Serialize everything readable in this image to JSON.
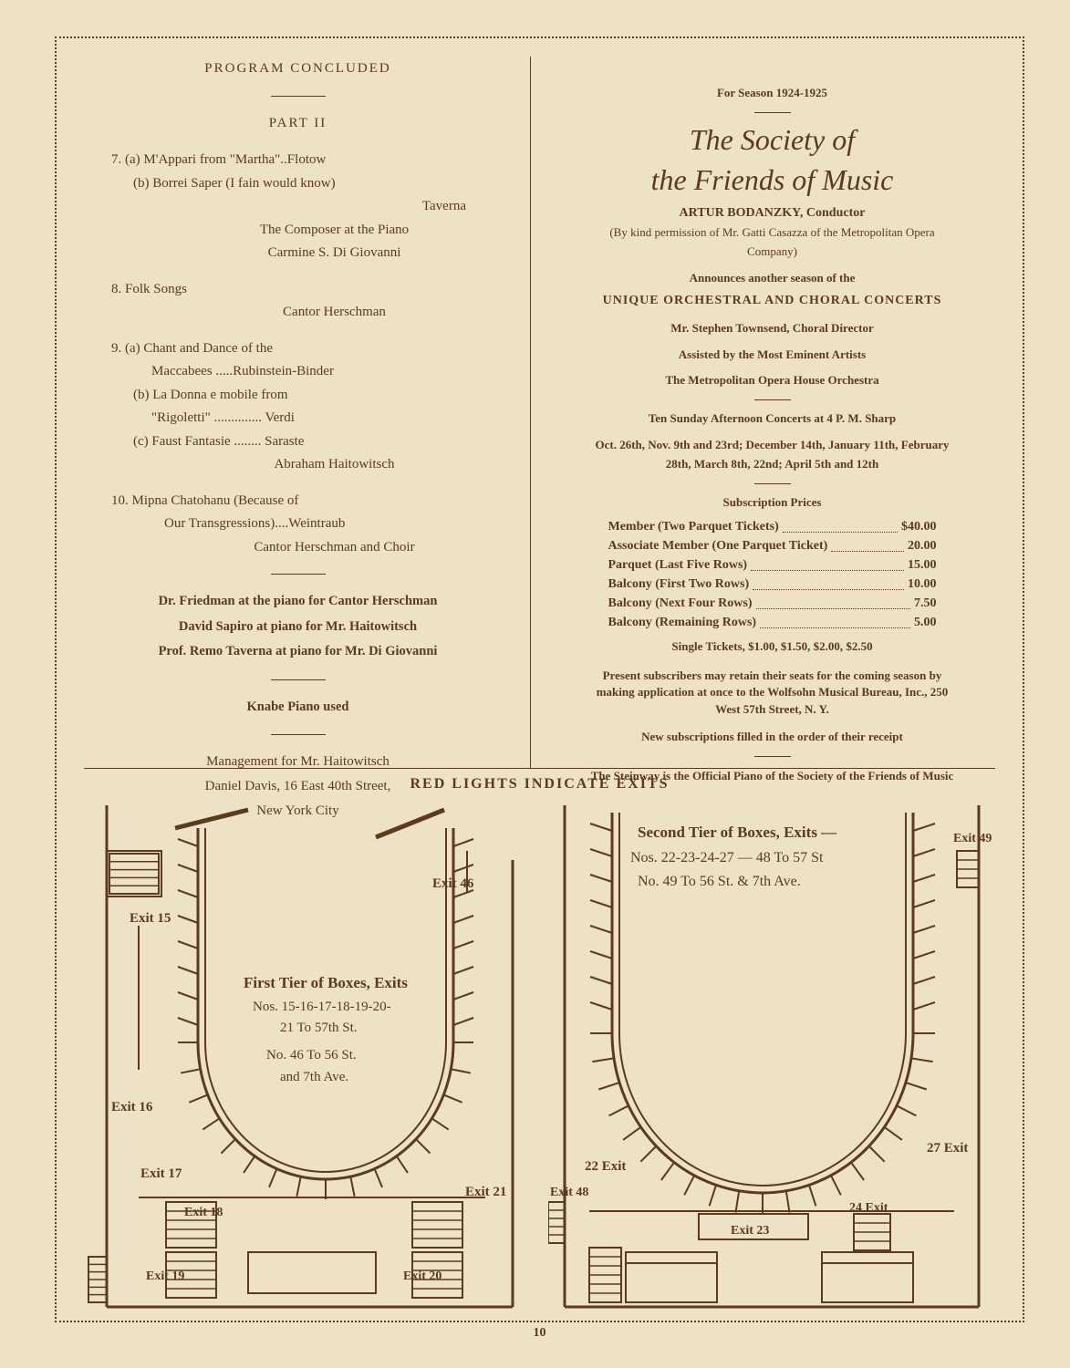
{
  "pageNumber": "10",
  "diagramHeader": "RED LIGHTS INDICATE EXITS",
  "program": {
    "concluded": "PROGRAM CONCLUDED",
    "part": "PART II",
    "item7a": "7. (a) M'Appari from \"Martha\"..Flotow",
    "item7b": "(b) Borrei Saper (I fain would know)",
    "item7b_right": "Taverna",
    "item7_note1": "The Composer at the Piano",
    "item7_note2": "Carmine S. Di Giovanni",
    "item8": "8. Folk Songs",
    "item8_perf": "Cantor Herschman",
    "item9a": "9. (a) Chant and Dance of the",
    "item9a2": "Maccabees .....Rubinstein-Binder",
    "item9b": "(b) La Donna e mobile from",
    "item9b2": "\"Rigoletti\" .............. Verdi",
    "item9c": "(c) Faust Fantasie ........ Saraste",
    "item9_perf": "Abraham Haitowitsch",
    "item10": "10. Mipna Chatohanu (Because of",
    "item10b": "Our Transgressions)....Weintraub",
    "item10_perf": "Cantor Herschman and Choir",
    "credit1": "Dr. Friedman at the piano for Cantor Herschman",
    "credit2": "David Sapiro at piano for Mr. Haitowitsch",
    "credit3": "Prof. Remo Taverna at piano for Mr. Di Giovanni",
    "piano": "Knabe Piano used",
    "mgmt1": "Management for Mr. Haitowitsch",
    "mgmt2": "Daniel Davis, 16 East 40th Street,",
    "mgmt3": "New York City"
  },
  "society": {
    "season": "For Season 1924-1925",
    "title1": "The Society of",
    "title2": "the Friends of Music",
    "conductor": "ARTUR BODANZKY, Conductor",
    "permission": "(By kind permission of Mr. Gatti Casazza of the Metropolitan Opera Company)",
    "announce": "Announces another season of the",
    "unique": "UNIQUE ORCHESTRAL AND CHORAL CONCERTS",
    "choral": "Mr. Stephen Townsend, Choral Director",
    "assisted": "Assisted by the Most Eminent Artists",
    "orchestra": "The Metropolitan Opera House Orchestra",
    "concerts": "Ten Sunday Afternoon Concerts at 4 P. M. Sharp",
    "dates": "Oct. 26th, Nov. 9th and 23rd; December 14th, January 11th, February 28th, March 8th, 22nd; April 5th and 12th",
    "prices_heading": "Subscription Prices",
    "prices": [
      {
        "label": "Member (Two Parquet Tickets)",
        "val": "$40.00"
      },
      {
        "label": "Associate Member (One Parquet Ticket)",
        "val": "20.00"
      },
      {
        "label": "Parquet (Last Five Rows)",
        "val": "15.00"
      },
      {
        "label": "Balcony (First Two Rows)",
        "val": "10.00"
      },
      {
        "label": "Balcony (Next Four Rows)",
        "val": "7.50"
      },
      {
        "label": "Balcony (Remaining Rows)",
        "val": "5.00"
      }
    ],
    "single": "Single Tickets, $1.00, $1.50, $2.00, $2.50",
    "subscribers": "Present subscribers may retain their seats for the coming season by making application at once to the Wolfsohn Musical Bureau, Inc., 250 West 57th Street, N. Y.",
    "newsubs": "New subscriptions filled in the order of their receipt",
    "steinway": "The Steinway is the Official Piano of the Society of the Friends of Music"
  },
  "diagram": {
    "first_tier_title": "First Tier of Boxes, Exits",
    "first_tier_line1": "Nos. 15-16-17-18-19-20-",
    "first_tier_line2": "21 To 57th St.",
    "first_tier_line3": "No. 46 To 56 St.",
    "first_tier_line4": "and 7th Ave.",
    "second_tier_title": "Second Tier of Boxes, Exits —",
    "second_tier_line1": "Nos. 22-23-24-27 — 48 To 57 St",
    "second_tier_line2": "No. 49 To 56 St. & 7th Ave.",
    "exit15": "Exit 15",
    "exit16": "Exit 16",
    "exit17": "Exit 17",
    "exit18": "Exit 18",
    "exit19": "Exit 19",
    "exit20": "Exit 20",
    "exit21": "Exit 21",
    "exit46": "Exit 46",
    "exit22": "22 Exit",
    "exit23": "Exit 23",
    "exit24": "24 Exit",
    "exit27": "27 Exit",
    "exit48": "Exit 48",
    "exit49": "Exit 49",
    "colors": {
      "stroke": "#5c3a1e",
      "bg": "#ede1c6"
    }
  }
}
